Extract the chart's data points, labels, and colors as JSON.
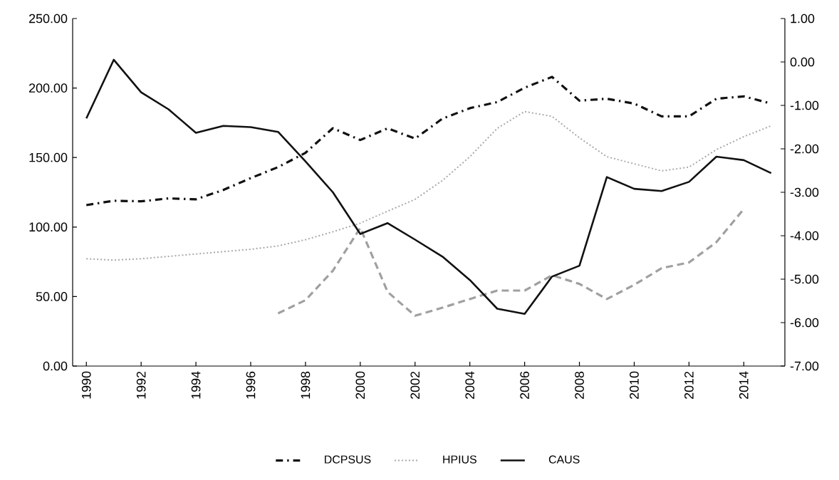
{
  "chart_data": {
    "type": "line",
    "x": [
      1990,
      1991,
      1992,
      1993,
      1994,
      1995,
      1996,
      1997,
      1998,
      1999,
      2000,
      2001,
      2002,
      2003,
      2004,
      2005,
      2006,
      2007,
      2008,
      2009,
      2010,
      2011,
      2012,
      2013,
      2014,
      2015
    ],
    "xlim": [
      1989.5,
      2015.5
    ],
    "xticks": [
      1990,
      1992,
      1994,
      1996,
      1998,
      2000,
      2002,
      2004,
      2006,
      2008,
      2010,
      2012,
      2014
    ],
    "ylim": [
      0,
      250
    ],
    "yticks": [
      {
        "value": 0,
        "label": "0.00"
      },
      {
        "value": 50,
        "label": "50.00"
      },
      {
        "value": 100,
        "label": "100.00"
      },
      {
        "value": 150,
        "label": "150.00"
      },
      {
        "value": 200,
        "label": "200.00"
      },
      {
        "value": 250,
        "label": "250.00"
      }
    ],
    "y2lim": [
      -7,
      1
    ],
    "y2ticks": [
      {
        "value": -7,
        "label": "-7.00"
      },
      {
        "value": -6,
        "label": "-6.00"
      },
      {
        "value": -5,
        "label": "-5.00"
      },
      {
        "value": -4,
        "label": "-4.00"
      },
      {
        "value": -3,
        "label": "-3.00"
      },
      {
        "value": -2,
        "label": "-2.00"
      },
      {
        "value": -1,
        "label": "-1.00"
      },
      {
        "value": 0,
        "label": "0.00"
      },
      {
        "value": 1,
        "label": "1.00"
      }
    ],
    "legend": "bottom",
    "grid": false,
    "series": [
      {
        "name": "DCPSUS",
        "color": "#111111",
        "line_style": "dashdot",
        "values": [
          115.8,
          118.9,
          118.5,
          120.6,
          119.9,
          126.7,
          135.2,
          143.1,
          153.4,
          171.1,
          162.6,
          171.0,
          163.6,
          178.0,
          185.5,
          189.9,
          200.2,
          208.0,
          190.9,
          192.3,
          188.8,
          179.6,
          179.6,
          192.3,
          194.0,
          188.8
        ]
      },
      {
        "name": "HPIUS",
        "color": "#a8a8a8",
        "line_style": "dotted",
        "values": [
          77.2,
          76.2,
          77.2,
          78.9,
          80.6,
          82.3,
          84.0,
          86.4,
          90.9,
          96.6,
          102.8,
          111.4,
          119.9,
          133.5,
          150.6,
          171.0,
          183.1,
          179.6,
          164.2,
          150.6,
          145.5,
          140.4,
          143.1,
          155.7,
          165.0,
          172.8
        ]
      },
      {
        "color": "#a0a0a0",
        "line_style": "dashed",
        "x": [
          1997,
          1998,
          1999,
          2000,
          2001,
          2002,
          2003,
          2004,
          2005,
          2006,
          2007,
          2008,
          2009,
          2010,
          2011,
          2012,
          2013,
          2014
        ],
        "values": [
          37.9,
          47.4,
          68.6,
          99.4,
          53.3,
          36.2,
          42.0,
          48.2,
          54.3,
          54.3,
          65.3,
          59.1,
          48.2,
          58.4,
          70.4,
          74.5,
          89.1,
          113.0
        ]
      },
      {
        "name": "CAUS",
        "color": "#111111",
        "line_style": "solid",
        "axis": "y2",
        "values": [
          -1.3,
          0.05,
          -0.7,
          -1.09,
          -1.63,
          -1.47,
          -1.5,
          -1.61,
          -2.29,
          -3.0,
          -3.96,
          -3.71,
          -4.09,
          -4.48,
          -5.02,
          -5.68,
          -5.8,
          -4.94,
          -4.69,
          -2.65,
          -2.92,
          -2.97,
          -2.76,
          -2.18,
          -2.26,
          -2.56
        ]
      }
    ]
  }
}
